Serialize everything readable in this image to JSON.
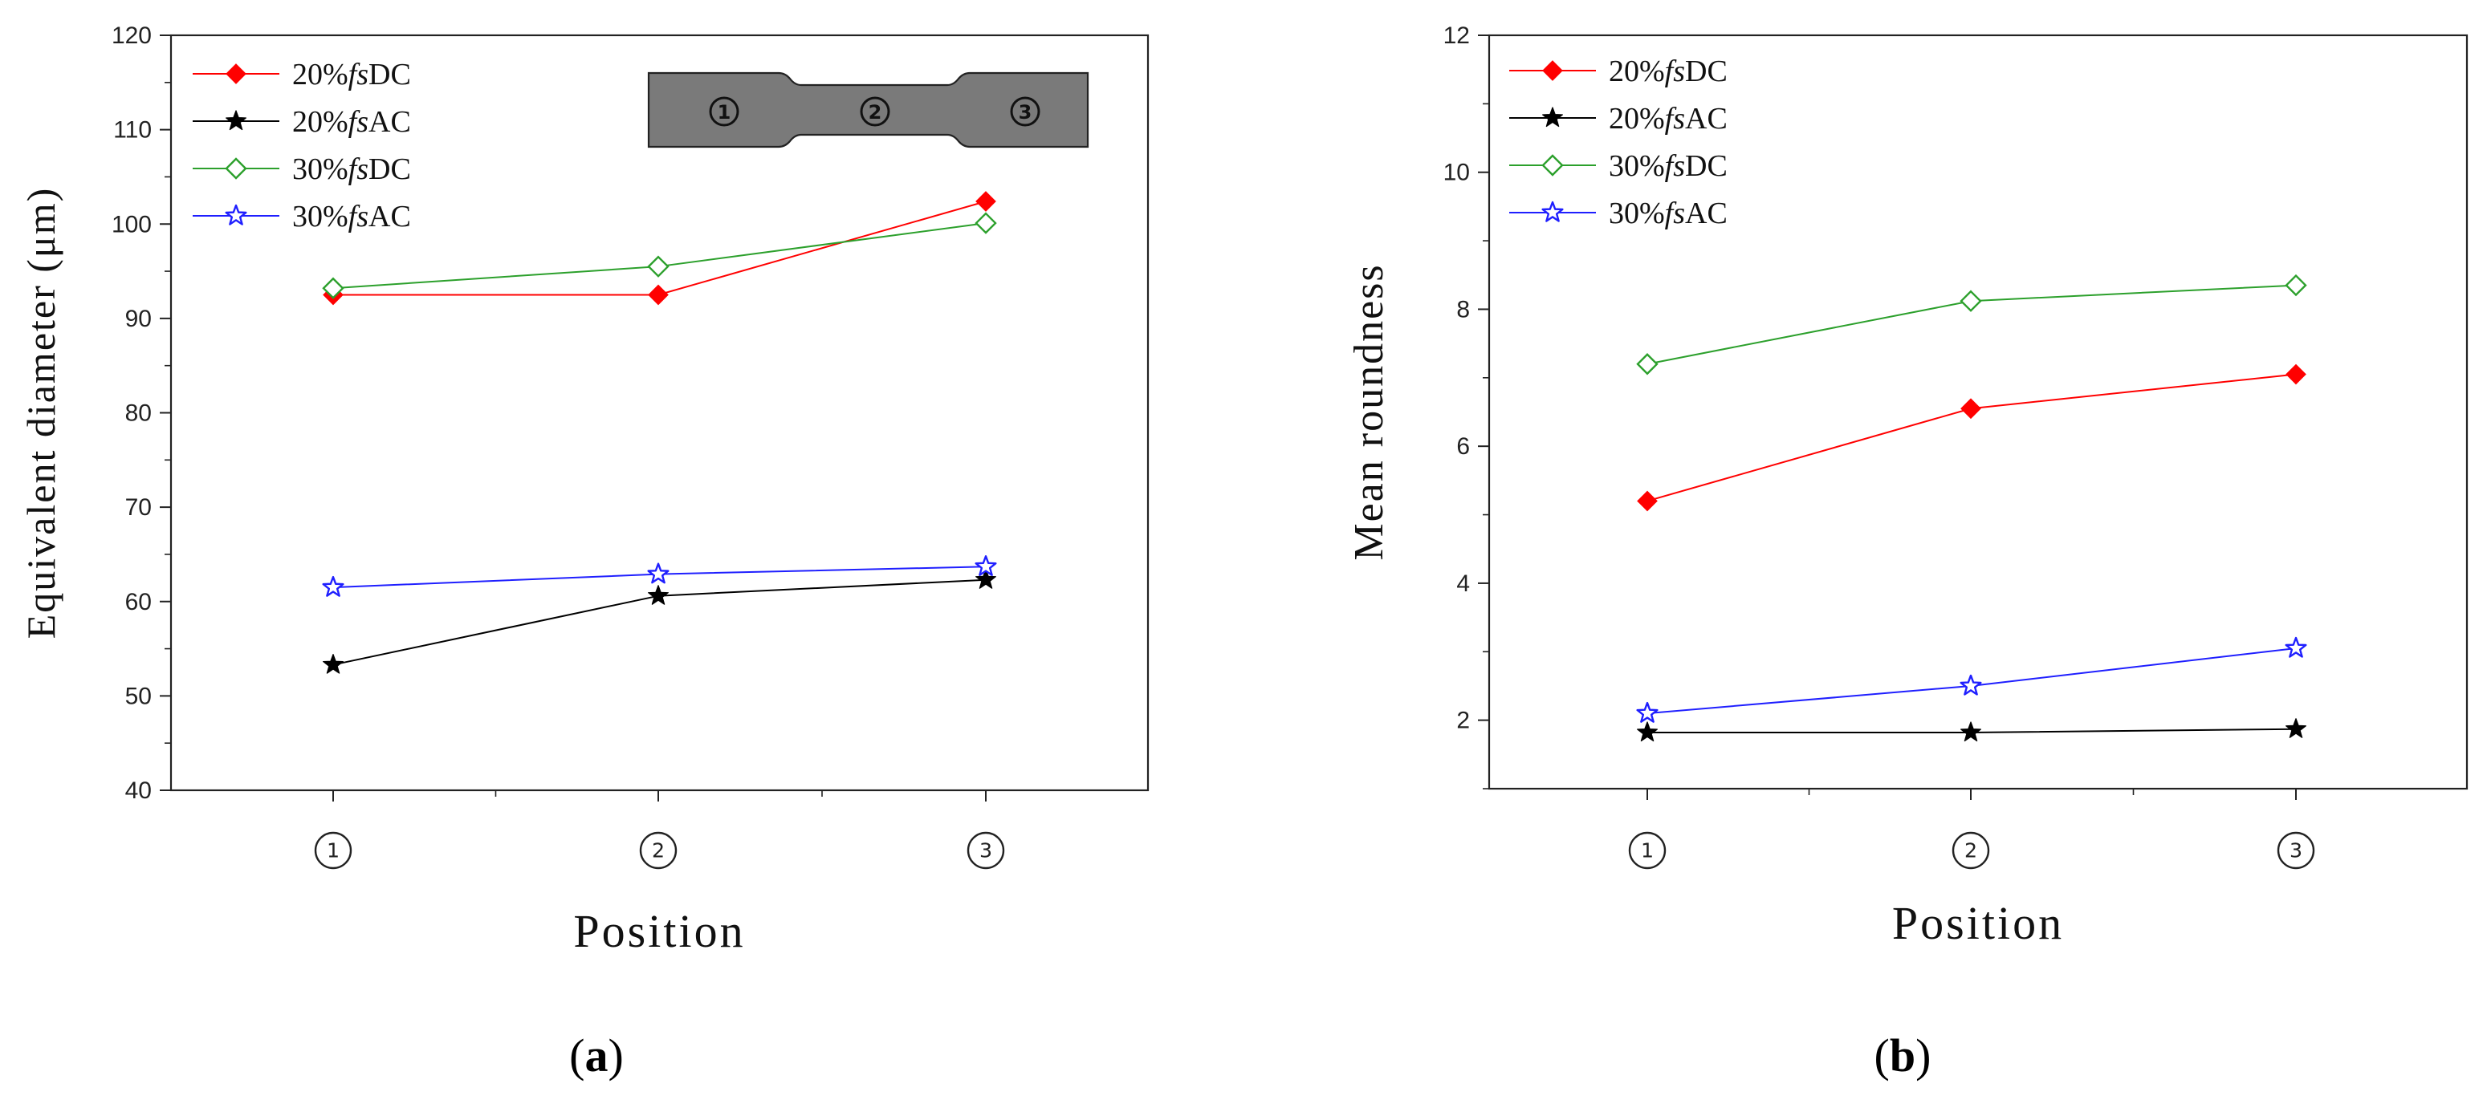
{
  "figure": {
    "panel_a_label": [
      "(",
      "a",
      ")"
    ],
    "panel_b_label": [
      "(",
      "b",
      ")"
    ],
    "inset_labels": [
      "①",
      "②",
      "③"
    ]
  },
  "chart_data": [
    {
      "type": "line",
      "panel": "a",
      "title": "",
      "xlabel": "Position",
      "ylabel": "Equivalent diameter (μm)",
      "categories": [
        "①",
        "②",
        "③"
      ],
      "ylim": [
        40,
        120
      ],
      "yticks": [
        40,
        50,
        60,
        70,
        80,
        90,
        100,
        110,
        120
      ],
      "legend_position": "top-left",
      "series": [
        {
          "name": "20%fsDC",
          "label_prefix": "20%",
          "label_italic": "fs",
          "label_suffix": "DC",
          "color": "#ff0000",
          "marker": "diamond-filled",
          "values": [
            92.5,
            92.5,
            102.4
          ]
        },
        {
          "name": "20%fsAC",
          "label_prefix": "20%",
          "label_italic": "fs",
          "label_suffix": "AC",
          "color": "#000000",
          "marker": "star-filled",
          "values": [
            53.3,
            60.6,
            62.3
          ]
        },
        {
          "name": "30%fsDC",
          "label_prefix": "30%",
          "label_italic": "fs",
          "label_suffix": "DC",
          "color": "#2ca02c",
          "marker": "diamond-open",
          "values": [
            93.2,
            95.5,
            100.1
          ]
        },
        {
          "name": "30%fsAC",
          "label_prefix": "30%",
          "label_italic": "fs",
          "label_suffix": "AC",
          "color": "#1f1fff",
          "marker": "star-open",
          "values": [
            61.5,
            62.9,
            63.7
          ]
        }
      ]
    },
    {
      "type": "line",
      "panel": "b",
      "title": "",
      "xlabel": "Position",
      "ylabel": "Mean roundness",
      "categories": [
        "①",
        "②",
        "③"
      ],
      "ylim": [
        1,
        12
      ],
      "yticks": [
        2,
        4,
        6,
        8,
        10,
        12
      ],
      "legend_position": "top-left",
      "series": [
        {
          "name": "20%fsDC",
          "label_prefix": "20%",
          "label_italic": "fs",
          "label_suffix": "DC",
          "color": "#ff0000",
          "marker": "diamond-filled",
          "values": [
            5.2,
            6.55,
            7.05
          ]
        },
        {
          "name": "20%fsAC",
          "label_prefix": "20%",
          "label_italic": "fs",
          "label_suffix": "AC",
          "color": "#000000",
          "marker": "star-filled",
          "values": [
            1.82,
            1.82,
            1.87
          ]
        },
        {
          "name": "30%fsDC",
          "label_prefix": "30%",
          "label_italic": "fs",
          "label_suffix": "DC",
          "color": "#2ca02c",
          "marker": "diamond-open",
          "values": [
            7.2,
            8.12,
            8.35
          ]
        },
        {
          "name": "30%fsAC",
          "label_prefix": "30%",
          "label_italic": "fs",
          "label_suffix": "AC",
          "color": "#1f1fff",
          "marker": "star-open",
          "values": [
            2.1,
            2.5,
            3.05
          ]
        }
      ]
    }
  ]
}
